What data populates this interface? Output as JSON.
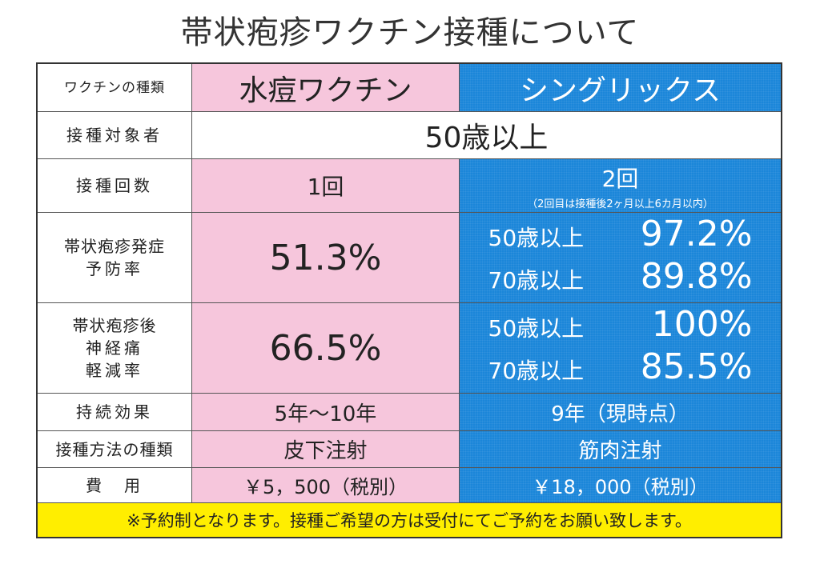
{
  "title": "帯状疱疹ワクチン接種について",
  "vaccine_type": {
    "header": "ワクチンの種類",
    "col1": "水痘ワクチン",
    "col2": "シングリックス"
  },
  "target": {
    "header": "接種対象者",
    "value": "50歳以上"
  },
  "doses": {
    "header": "接種回数",
    "col1": "1回",
    "col2": "2回",
    "col2_note": "（2回目は接種後2ヶ月以上6カ月以内）"
  },
  "prevention": {
    "header_line1": "帯状疱疹発症",
    "header_line2": "予防率",
    "col1": "51.3%",
    "col2_rows": [
      {
        "label": "50歳以上",
        "value": "97.2%"
      },
      {
        "label": "70歳以上",
        "value": "89.8%"
      }
    ]
  },
  "pain_reduction": {
    "header_line1": "帯状疱疹後",
    "header_line2": "神経痛",
    "header_line3": "軽減率",
    "col1": "66.5%",
    "col2_rows": [
      {
        "label": "50歳以上",
        "value": "100%"
      },
      {
        "label": "70歳以上",
        "value": "85.5%"
      }
    ]
  },
  "duration": {
    "header": "持続効果",
    "col1": "5年〜10年",
    "col2": "9年（現時点）"
  },
  "method": {
    "header": "接種方法の種類",
    "col1": "皮下注射",
    "col2": "筋肉注射"
  },
  "cost": {
    "header": "費　用",
    "col1": "￥5，500（税別）",
    "col2": "￥18，000（税別）"
  },
  "footer_note": "※予約制となります。接種ご希望の方は受付にてご予約をお願い致します。",
  "colors": {
    "pink": "#f6c6dc",
    "blue": "#1b86d9",
    "yellow": "#ffee00"
  }
}
